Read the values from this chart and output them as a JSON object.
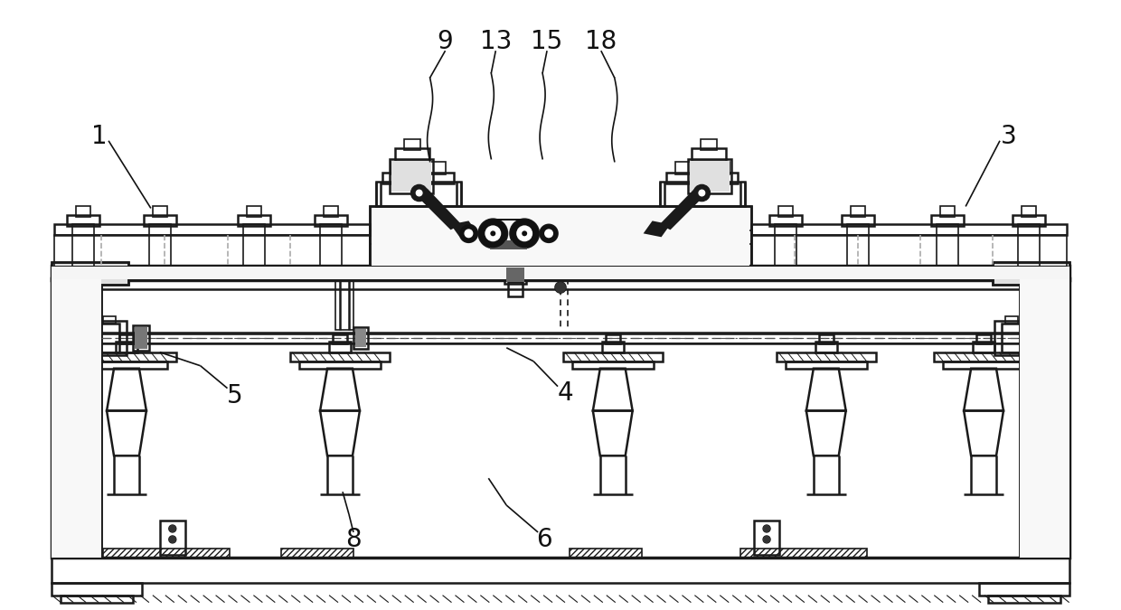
{
  "bg_color": "#ffffff",
  "line_color": "#1a1a1a",
  "dark_color": "#111111",
  "label_fontsize": 20,
  "figsize": [
    12.4,
    6.75
  ],
  "dpi": 100
}
